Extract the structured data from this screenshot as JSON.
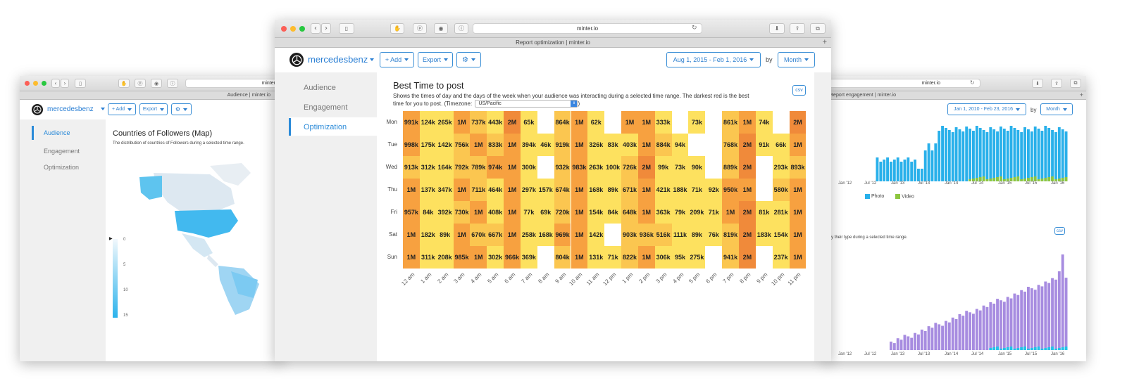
{
  "left_window": {
    "url": "minter.io",
    "tab_title": "Audience | minter.io",
    "brand": "mercedesbenz",
    "add_label": "+ Add",
    "export_label": "Export",
    "nav": [
      "Audience",
      "Engagement",
      "Optimization"
    ],
    "section_title": "Countries of Followers (Map)",
    "section_desc": "The distribution of countries of Followers during a selected time range.",
    "legend_ticks": [
      "0",
      "5",
      "10",
      "15"
    ]
  },
  "main_window": {
    "url": "minter.io",
    "tab_title": "Report optimization | minter.io",
    "brand": "mercedesbenz",
    "add_label": "+ Add",
    "export_label": "Export",
    "date_range": "Aug 1, 2015 - Feb 1, 2016",
    "by_label": "by",
    "period": "Month",
    "nav": [
      "Audience",
      "Engagement",
      "Optimization"
    ],
    "title": "Best Time to post",
    "description": "Shows the times of day and the days of the week when your audience was interacting during a selected time range. The darkest red is the best time for you to post. (Timezone:",
    "description_end": ")",
    "timezone": "US/Pacific",
    "csv_label": "csv"
  },
  "right_window": {
    "url": "minter.io",
    "tab_title": "Report engagement | minter.io",
    "date_range": "Jan 1, 2010 - Feb 23, 2016",
    "by_label": "by",
    "period": "Month",
    "chart1_xticks": [
      "Jan '12",
      "Jul '12",
      "Jan '13",
      "Jul '13",
      "Jan '14",
      "Jul '14",
      "Jan '15",
      "Jul '15",
      "Jan '16"
    ],
    "legend_photo": "Photo",
    "legend_video": "Video",
    "chart2_desc": "y their type during a selected time range.",
    "csv_label": "csv",
    "chart2_xticks": [
      "Jan '12",
      "Jul '12",
      "Jan '13",
      "Jul '13",
      "Jan '14",
      "Jul '14",
      "Jan '15",
      "Jul '15",
      "Jan '16"
    ],
    "colors": {
      "photo": "#29b0ea",
      "video": "#8dc63f",
      "purple": "#a78ce0",
      "teal": "#22c4e8"
    }
  },
  "chart_data": {
    "type": "heatmap",
    "title": "Best Time to post",
    "rows": [
      "Mon",
      "Tue",
      "Wed",
      "Thu",
      "Fri",
      "Sat",
      "Sun"
    ],
    "columns": [
      "12 am",
      "1 am",
      "2 am",
      "3 am",
      "4 am",
      "5 am",
      "6 am",
      "7 am",
      "8 am",
      "9 am",
      "10 am",
      "11 am",
      "12 pm",
      "1 pm",
      "2 pm",
      "3 pm",
      "4 pm",
      "5 pm",
      "6 pm",
      "7 pm",
      "8 pm",
      "9 pm",
      "10 pm",
      "11 pm"
    ],
    "values": [
      [
        "991k",
        "124k",
        "265k",
        "1M",
        "737k",
        "443k",
        "2M",
        "65k",
        "",
        "864k",
        "1M",
        "62k",
        "",
        "1M",
        "1M",
        "333k",
        "",
        "73k",
        "",
        "861k",
        "1M",
        "74k",
        "",
        "2M"
      ],
      [
        "998k",
        "175k",
        "142k",
        "756k",
        "1M",
        "833k",
        "1M",
        "394k",
        "46k",
        "919k",
        "1M",
        "326k",
        "83k",
        "403k",
        "1M",
        "884k",
        "94k",
        "",
        "",
        "768k",
        "2M",
        "91k",
        "66k",
        "1M"
      ],
      [
        "913k",
        "312k",
        "164k",
        "792k",
        "789k",
        "974k",
        "1M",
        "300k",
        "",
        "932k",
        "983k",
        "263k",
        "100k",
        "726k",
        "2M",
        "99k",
        "73k",
        "90k",
        "",
        "889k",
        "2M",
        "",
        "293k",
        "893k"
      ],
      [
        "1M",
        "137k",
        "347k",
        "1M",
        "711k",
        "464k",
        "1M",
        "297k",
        "157k",
        "674k",
        "1M",
        "168k",
        "89k",
        "671k",
        "1M",
        "421k",
        "188k",
        "71k",
        "92k",
        "950k",
        "1M",
        "",
        "580k",
        "1M"
      ],
      [
        "957k",
        "84k",
        "392k",
        "730k",
        "1M",
        "408k",
        "1M",
        "77k",
        "69k",
        "720k",
        "1M",
        "154k",
        "84k",
        "648k",
        "1M",
        "363k",
        "79k",
        "209k",
        "71k",
        "1M",
        "2M",
        "81k",
        "281k",
        "1M"
      ],
      [
        "1M",
        "182k",
        "89k",
        "1M",
        "670k",
        "667k",
        "1M",
        "258k",
        "168k",
        "969k",
        "1M",
        "142k",
        "",
        "903k",
        "936k",
        "516k",
        "111k",
        "89k",
        "76k",
        "819k",
        "2M",
        "183k",
        "154k",
        "1M"
      ],
      [
        "1M",
        "311k",
        "208k",
        "985k",
        "1M",
        "302k",
        "966k",
        "369k",
        "",
        "804k",
        "1M",
        "131k",
        "71k",
        "822k",
        "1M",
        "306k",
        "95k",
        "275k",
        "",
        "941k",
        "2M",
        "",
        "237k",
        "1M"
      ]
    ],
    "colors": {
      "low": "#fde15f",
      "mid": "#fbc650",
      "high": "#f7a140",
      "max": "#f08a3a",
      "empty": "#ffffff"
    }
  }
}
